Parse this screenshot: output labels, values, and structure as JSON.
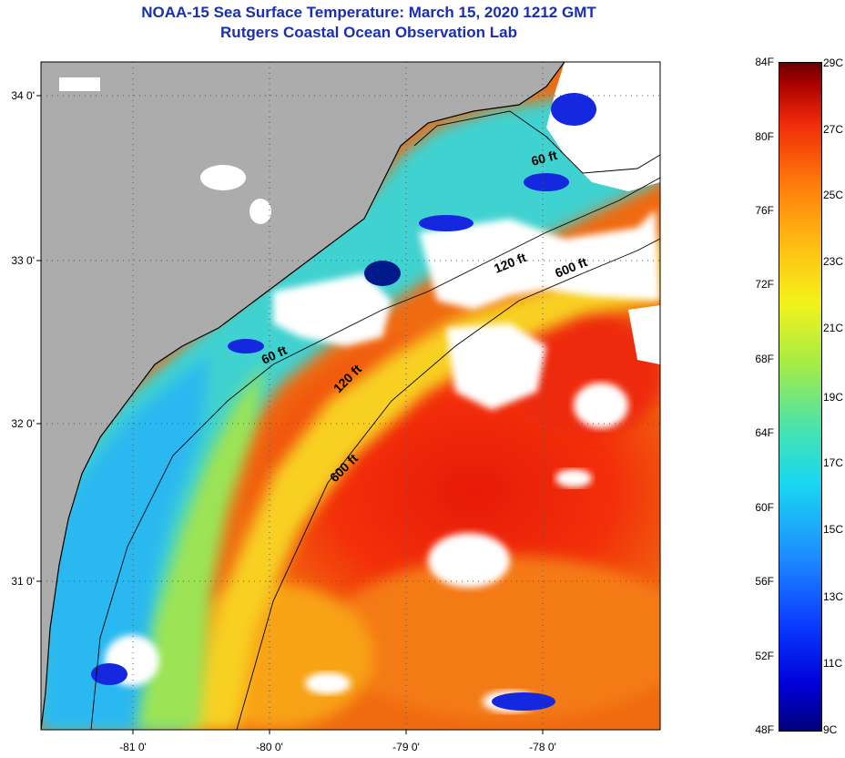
{
  "title_line1": "NOAA-15 Sea Surface Temperature:  March 15, 2020 1212 GMT",
  "title_line2": "Rutgers Coastal Ocean Observation Lab",
  "lat_labels": [
    "34 0'",
    "33 0'",
    "32 0'",
    "31 0'"
  ],
  "lon_labels": [
    "-81 0'",
    "-80 0'",
    "-79 0'",
    "-78 0'"
  ],
  "contour_labels": [
    "60 ft",
    "120 ft",
    "600 ft",
    "60 ft",
    "120 ft",
    "600 ft"
  ],
  "colorbar": {
    "fahrenheit": [
      "84F",
      "80F",
      "76F",
      "72F",
      "68F",
      "64F",
      "60F",
      "56F",
      "52F",
      "48F"
    ],
    "celsius": [
      "29C",
      "27C",
      "25C",
      "23C",
      "21C",
      "19C",
      "17C",
      "15C",
      "13C",
      "11C",
      "9C"
    ]
  },
  "colors": {
    "land": "#acacac",
    "cloud": "#ffffff",
    "warm": "#f02a0a",
    "cold": "#0000d8",
    "title": "#1a2fb0"
  }
}
